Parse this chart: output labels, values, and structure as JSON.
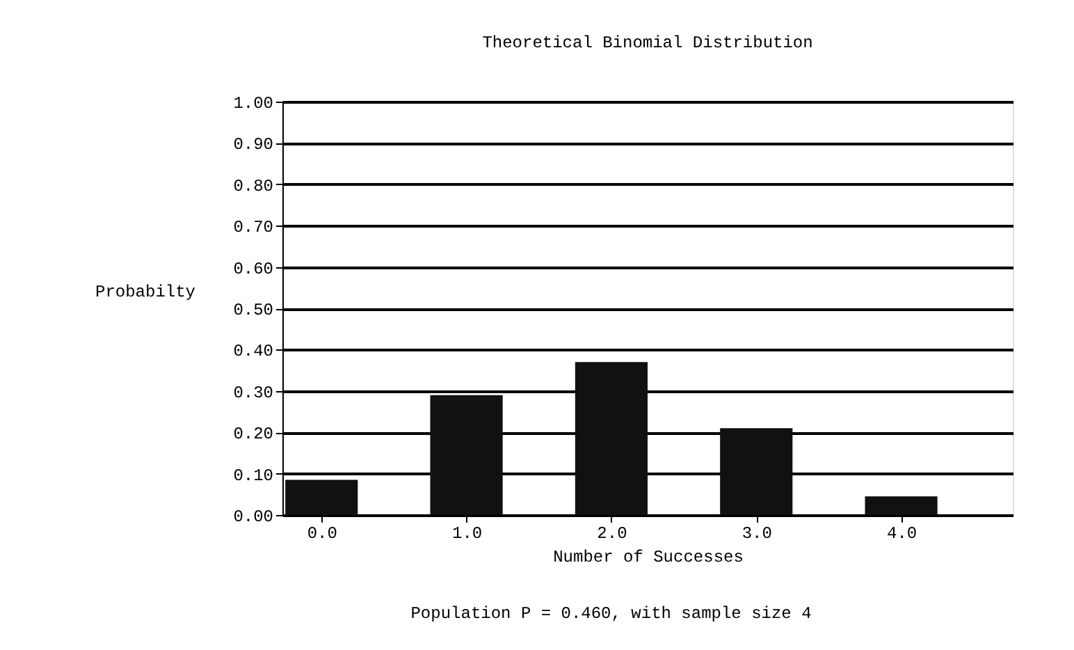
{
  "chart_data": {
    "type": "bar",
    "title": "Theoretical Binomial Distribution",
    "xlabel": "Number of Successes",
    "ylabel": "Probabilty",
    "annotations": [
      "Population P = 0.460, with sample size 4"
    ],
    "x": [
      0,
      1,
      2,
      3,
      4
    ],
    "values": [
      0.085,
      0.29,
      0.37,
      0.21,
      0.045
    ],
    "color": "#111111",
    "xlim": [
      -0.27,
      4.77
    ],
    "xticks": [
      {
        "value": 0,
        "label": "0.0"
      },
      {
        "value": 1,
        "label": "1.0"
      },
      {
        "value": 2,
        "label": "2.0"
      },
      {
        "value": 3,
        "label": "3.0"
      },
      {
        "value": 4,
        "label": "4.0"
      }
    ],
    "ylim": [
      0,
      1
    ],
    "yticks": [
      {
        "value": 0,
        "label": "0.00"
      },
      {
        "value": 0.1,
        "label": "0.10"
      },
      {
        "value": 0.2,
        "label": "0.20"
      },
      {
        "value": 0.3,
        "label": "0.30"
      },
      {
        "value": 0.4,
        "label": "0.40"
      },
      {
        "value": 0.5,
        "label": "0.50"
      },
      {
        "value": 0.6,
        "label": "0.60"
      },
      {
        "value": 0.7,
        "label": "0.70"
      },
      {
        "value": 0.8,
        "label": "0.80"
      },
      {
        "value": 0.9,
        "label": "0.90"
      },
      {
        "value": 1,
        "label": "1.00"
      }
    ],
    "grid": "y"
  }
}
